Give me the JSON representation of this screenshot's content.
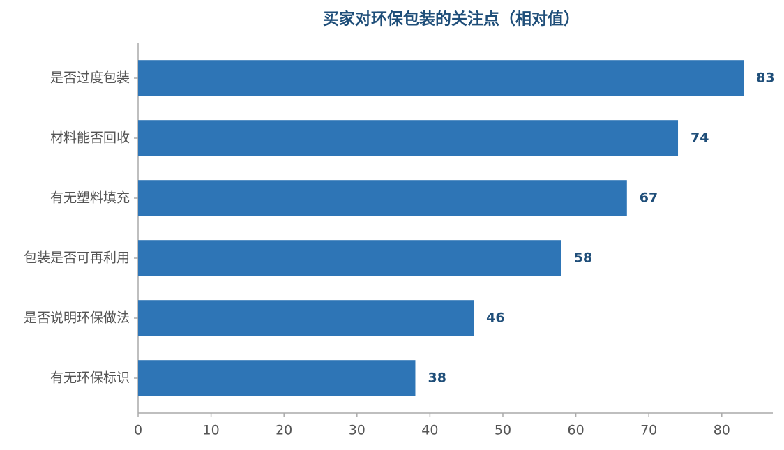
{
  "chart_data": {
    "type": "barh",
    "title": "买家对环保包装的关注点（相对值）",
    "categories": [
      "是否过度包装",
      "材料能否回收",
      "有无塑料填充",
      "包装是否可再利用",
      "是否说明环保做法",
      "有无环保标识"
    ],
    "values": [
      83,
      74,
      67,
      58,
      46,
      38
    ],
    "color": "#2e75b6",
    "xlim": [
      0,
      87
    ],
    "xticks": [
      0,
      10,
      20,
      30,
      40,
      50,
      60,
      70,
      80
    ]
  }
}
